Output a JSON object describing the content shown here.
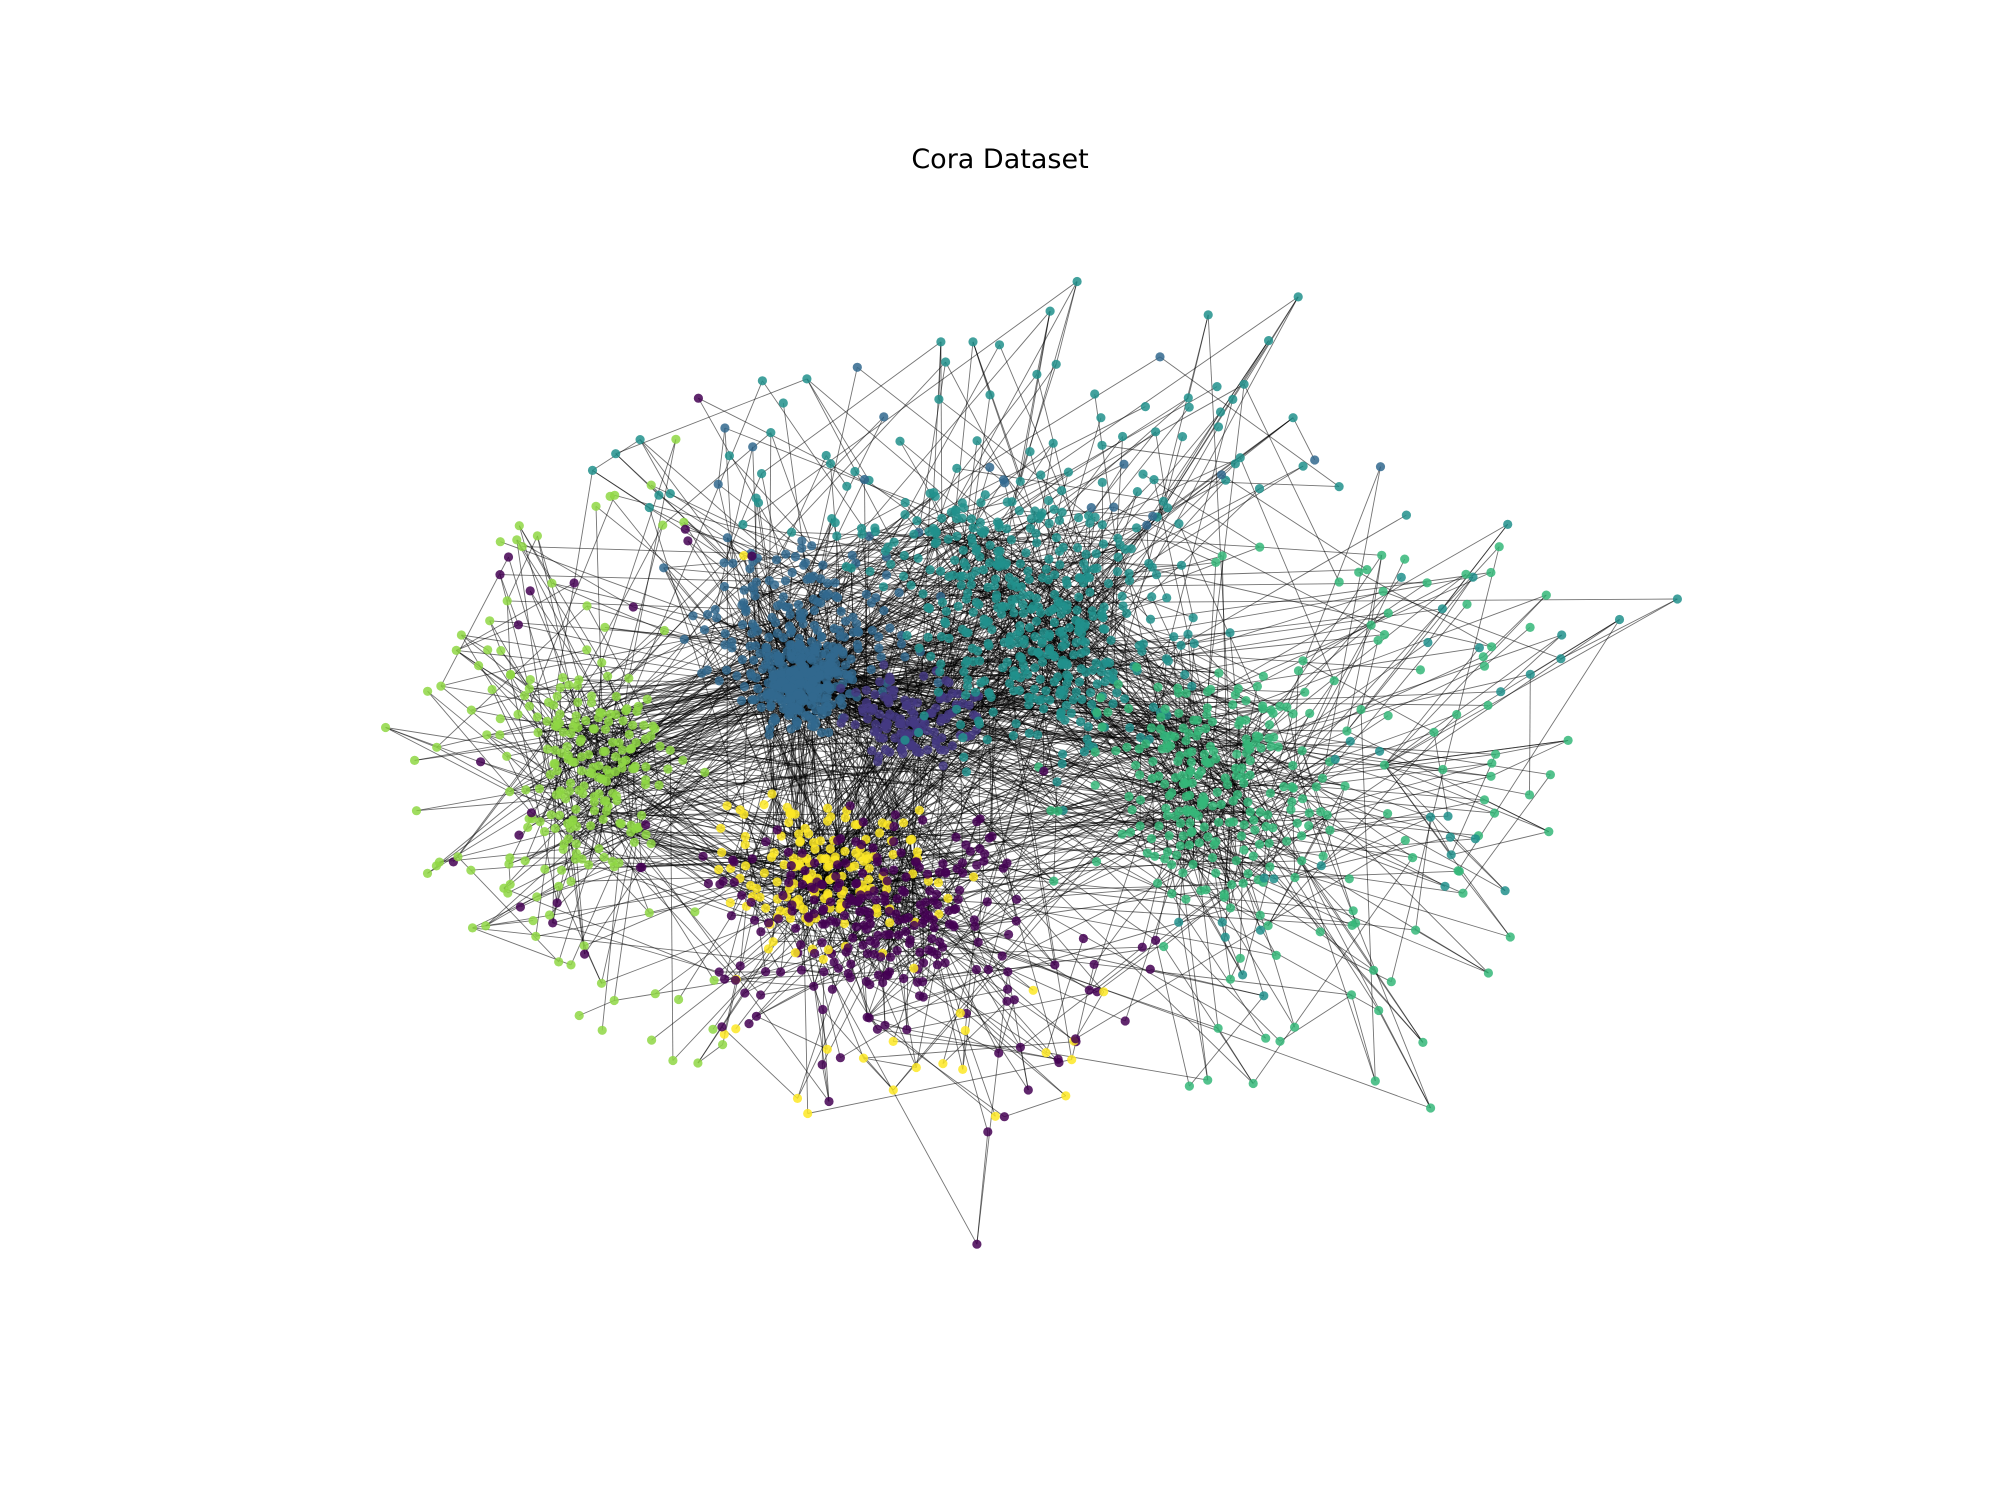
{
  "figure": {
    "title": "Cora Dataset"
  },
  "graph": {
    "type": "network",
    "node_color_map": "viridis",
    "num_classes": 7,
    "class_colors": [
      "#440154",
      "#443983",
      "#31688e",
      "#21918c",
      "#35b779",
      "#8fd744",
      "#fde725"
    ],
    "edge_color": "#000000",
    "node_alpha": 0.85
  }
}
